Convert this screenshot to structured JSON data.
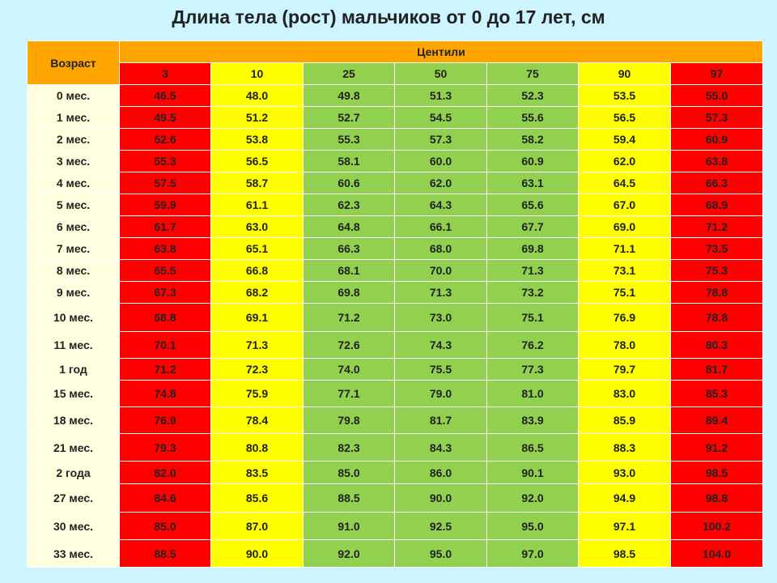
{
  "title": "Длина тела (рост) мальчиков от 0 до 17 лет, см",
  "header": {
    "age_label": "Возраст",
    "centiles_label": "Центили",
    "centiles": [
      "3",
      "10",
      "25",
      "50",
      "75",
      "90",
      "97"
    ]
  },
  "colors": {
    "header": "#ffa500",
    "age_cell": "#ffffe0",
    "centile_3_97": "#ff0000",
    "centile_10_90": "#ffff00",
    "centile_25_75": "#92d050"
  },
  "rows": [
    {
      "age": "0 мес.",
      "values": [
        "46.5",
        "48.0",
        "49.8",
        "51.3",
        "52.3",
        "53.5",
        "55.0"
      ]
    },
    {
      "age": "1 мес.",
      "values": [
        "49.5",
        "51.2",
        "52.7",
        "54.5",
        "55.6",
        "56.5",
        "57.3"
      ]
    },
    {
      "age": "2 мес.",
      "values": [
        "52.6",
        "53.8",
        "55.3",
        "57.3",
        "58.2",
        "59.4",
        "60.9"
      ]
    },
    {
      "age": "3 мес.",
      "values": [
        "55.3",
        "56.5",
        "58.1",
        "60.0",
        "60.9",
        "62.0",
        "63.8"
      ]
    },
    {
      "age": "4 мес.",
      "values": [
        "57.5",
        "58.7",
        "60.6",
        "62.0",
        "63.1",
        "64.5",
        "66.3"
      ]
    },
    {
      "age": "5 мес.",
      "values": [
        "59.9",
        "61.1",
        "62.3",
        "64.3",
        "65.6",
        "67.0",
        "68.9"
      ]
    },
    {
      "age": "6 мес.",
      "values": [
        "61.7",
        "63.0",
        "64.8",
        "66.1",
        "67.7",
        "69.0",
        "71.2"
      ]
    },
    {
      "age": "7 мес.",
      "values": [
        "63.8",
        "65.1",
        "66.3",
        "68.0",
        "69.8",
        "71.1",
        "73.5"
      ]
    },
    {
      "age": "8 мес.",
      "values": [
        "65.5",
        "66.8",
        "68.1",
        "70.0",
        "71.3",
        "73.1",
        "75.3"
      ]
    },
    {
      "age": "9 мес.",
      "values": [
        "67.3",
        "68.2",
        "69.8",
        "71.3",
        "73.2",
        "75.1",
        "78.8"
      ]
    },
    {
      "age": "10 мес.",
      "values": [
        "68.8",
        "69.1",
        "71.2",
        "73.0",
        "75.1",
        "76.9",
        "78.8"
      ]
    },
    {
      "age": "11 мес.",
      "values": [
        "70.1",
        "71.3",
        "72.6",
        "74.3",
        "76.2",
        "78.0",
        "80.3"
      ]
    },
    {
      "age": "1 год",
      "values": [
        "71.2",
        "72.3",
        "74.0",
        "75.5",
        "77.3",
        "79.7",
        "81.7"
      ]
    },
    {
      "age": "15 мес.",
      "values": [
        "74.8",
        "75.9",
        "77.1",
        "79.0",
        "81.0",
        "83.0",
        "85.3"
      ]
    },
    {
      "age": "18 мес.",
      "values": [
        "76.9",
        "78.4",
        "79.8",
        "81.7",
        "83.9",
        "85.9",
        "89.4"
      ]
    },
    {
      "age": "21 мес.",
      "values": [
        "79.3",
        "80.8",
        "82.3",
        "84.3",
        "86.5",
        "88.3",
        "91.2"
      ]
    },
    {
      "age": "2 года",
      "values": [
        "82.0",
        "83.5",
        "85.0",
        "86.0",
        "90.1",
        "93.0",
        "98.5"
      ]
    },
    {
      "age": "27 мес.",
      "values": [
        "84.6",
        "85.6",
        "88.5",
        "90.0",
        "92.0",
        "94.9",
        "98.8"
      ]
    },
    {
      "age": "30 мес.",
      "values": [
        "85.0",
        "87.0",
        "91.0",
        "92.5",
        "95.0",
        "97.1",
        "100.2"
      ]
    },
    {
      "age": "33 мес.",
      "values": [
        "88.5",
        "90.0",
        "92.0",
        "95.0",
        "97.0",
        "98.5",
        "104.0"
      ]
    }
  ]
}
